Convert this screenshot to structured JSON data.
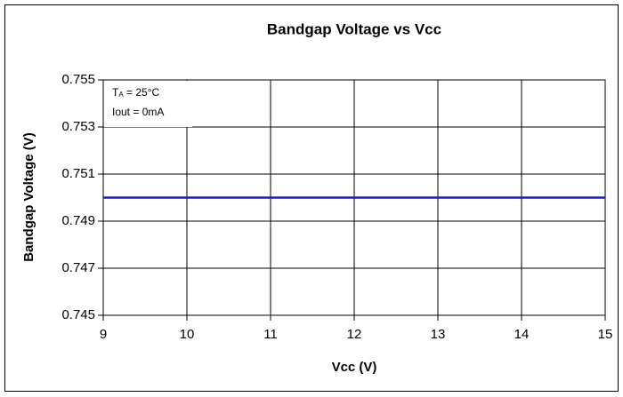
{
  "chart_data": {
    "type": "line",
    "title": "Bandgap Voltage vs Vcc",
    "x_label": "Vcc (V)",
    "y_label": "Bandgap Voltage (V)",
    "x": [
      9,
      10,
      11,
      12,
      13,
      14,
      15
    ],
    "series": [
      {
        "name": "Bandgap Voltage",
        "color": "#1a1acc",
        "values": [
          0.75,
          0.75,
          0.75,
          0.75,
          0.75,
          0.75,
          0.75
        ]
      }
    ],
    "xlim": [
      9,
      15
    ],
    "xticks": [
      9,
      10,
      11,
      12,
      13,
      14,
      15
    ],
    "ylim": [
      0.745,
      0.755
    ],
    "yticks": [
      0.755,
      0.753,
      0.751,
      0.749,
      0.747,
      0.745
    ],
    "grid": true,
    "annotation": {
      "line1": [
        "T",
        "A",
        " = 25°C"
      ],
      "line2": "Iout = 0mA"
    }
  }
}
